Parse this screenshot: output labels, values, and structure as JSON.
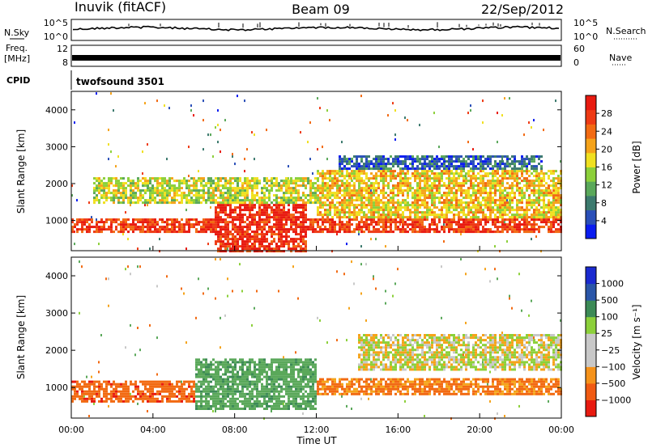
{
  "header": {
    "station": "Inuvik (fitACF)",
    "beam": "Beam 09",
    "date": "22/Sep/2012"
  },
  "strip_labels": {
    "nsky": "N.Sky",
    "freq_top": "Freq.",
    "freq_unit": "[MHz]",
    "cpid": "CPID",
    "nsearch": "N.Search",
    "nave": "Nave"
  },
  "mode_label": "twofsound 3501",
  "colors": {
    "frame": "#000000",
    "background": "#ffffff"
  },
  "chart_data": [
    {
      "type": "line",
      "name": "noise-panel",
      "yticks_left": [
        "10^5",
        "10^0"
      ],
      "yticks_right": [
        "10^5",
        "10^0"
      ],
      "log_scale": true
    },
    {
      "type": "line",
      "name": "frequency-panel",
      "yticks_left": [
        "12",
        "8"
      ],
      "yticks_right": [
        "60",
        "0"
      ],
      "approx_value": 10.5
    },
    {
      "type": "heatmap",
      "name": "power-panel",
      "ylabel": "Slant Range [km]",
      "ylim": [
        180,
        4500
      ],
      "yticks": [
        "1000",
        "2000",
        "3000",
        "4000"
      ],
      "xticks": [
        "00:00",
        "04:00",
        "08:00",
        "12:00",
        "16:00",
        "20:00",
        "00:00"
      ],
      "colorbar_label": "Power [dB]",
      "colorbar_ticks": [
        "28",
        "24",
        "20",
        "16",
        "12",
        "8",
        "4"
      ],
      "colorbar_colors": [
        "#0a1cf0",
        "#2a4fb8",
        "#3c7a6e",
        "#5aa85a",
        "#8cd03a",
        "#f0e020",
        "#f5a31a",
        "#f26a12",
        "#ee3a14",
        "#e81a10"
      ],
      "bands": [
        {
          "t": [
            0,
            24
          ],
          "r": [
            700,
            1100
          ],
          "level": 0.9
        },
        {
          "t": [
            7,
            11.5
          ],
          "r": [
            200,
            1700
          ],
          "level": 0.95
        },
        {
          "t": [
            1,
            22
          ],
          "r": [
            1500,
            2200
          ],
          "level": 0.5
        },
        {
          "t": [
            12,
            24
          ],
          "r": [
            1100,
            2400
          ],
          "level": 0.6
        },
        {
          "t": [
            13,
            23
          ],
          "r": [
            2400,
            2800
          ],
          "level": 0.15
        }
      ]
    },
    {
      "type": "heatmap",
      "name": "velocity-panel",
      "ylabel": "Slant Range [km]",
      "ylim": [
        180,
        4500
      ],
      "yticks": [
        "1000",
        "2000",
        "3000",
        "4000"
      ],
      "xticks": [
        "00:00",
        "04:00",
        "08:00",
        "12:00",
        "16:00",
        "20:00",
        "00:00"
      ],
      "xlabel": "Time UT",
      "colorbar_label": "Velocity [m s⁻¹]",
      "colorbar_ticks": [
        "1000",
        "500",
        "100",
        "25",
        "−25",
        "−100",
        "−500",
        "−1000"
      ],
      "colorbar_colors": [
        "#e81a10",
        "#f05a12",
        "#f5921a",
        "#c8c8c8",
        "#c8c8c8",
        "#8cd03a",
        "#3c8a56",
        "#2a56a8",
        "#1a2ad0"
      ],
      "bands": [
        {
          "t": [
            0,
            8
          ],
          "r": [
            600,
            1200
          ],
          "v": -300
        },
        {
          "t": [
            6,
            12
          ],
          "r": [
            400,
            1800
          ],
          "v": 300
        },
        {
          "t": [
            12,
            24
          ],
          "r": [
            800,
            1300
          ],
          "v": -200
        },
        {
          "t": [
            14,
            24
          ],
          "r": [
            1500,
            2500
          ],
          "v": 0
        }
      ]
    }
  ]
}
